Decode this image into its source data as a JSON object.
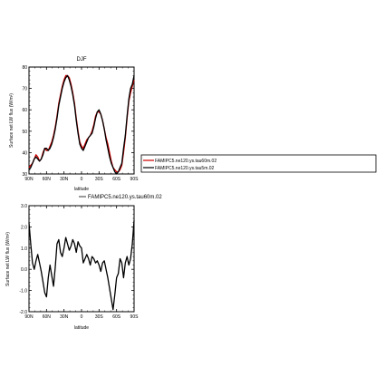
{
  "chart_data": [
    {
      "type": "line",
      "title": "DJF",
      "xlabel": "latitude",
      "ylabel": "Surface net LW flux (W/m²)",
      "xlim": [
        90,
        -90
      ],
      "ylim": [
        30,
        80
      ],
      "x_ticks": [
        90,
        60,
        30,
        0,
        -30,
        -60,
        -90
      ],
      "x_tick_labels": [
        "90N",
        "60N",
        "30N",
        "0",
        "30S",
        "60S",
        "90S"
      ],
      "y_ticks": [
        30,
        40,
        50,
        60,
        70,
        80
      ],
      "y_tick_labels": [
        "30",
        "40",
        "50",
        "60",
        "70",
        "80"
      ],
      "legend_position": "right",
      "series": [
        {
          "name": "FAMIPC5.ne120.ys.tau60m.02",
          "color": "#cc0000",
          "x": [
            90,
            87,
            84,
            81,
            78,
            75,
            72,
            69,
            66,
            63,
            60,
            57,
            54,
            51,
            48,
            45,
            42,
            39,
            36,
            33,
            30,
            27,
            24,
            21,
            18,
            15,
            12,
            9,
            6,
            3,
            0,
            -3,
            -6,
            -9,
            -12,
            -15,
            -18,
            -21,
            -24,
            -27,
            -30,
            -33,
            -36,
            -39,
            -42,
            -45,
            -48,
            -51,
            -54,
            -57,
            -60,
            -63,
            -66,
            -69,
            -72,
            -75,
            -78,
            -81,
            -84,
            -87,
            -90
          ],
          "values": [
            33,
            34,
            35,
            37,
            39,
            38,
            36,
            37,
            40,
            42,
            41,
            41,
            43,
            45,
            48,
            52,
            57,
            63,
            67,
            71,
            74,
            76,
            76,
            75,
            72,
            68,
            63,
            56,
            50,
            45,
            43,
            42,
            44,
            46,
            47,
            48,
            50,
            53,
            57,
            59,
            59,
            58,
            55,
            51,
            47,
            44,
            40,
            36,
            33,
            32,
            31,
            31,
            32,
            34,
            40,
            47,
            56,
            64,
            68,
            71,
            74
          ]
        },
        {
          "name": "FAMIPC5.ne120.ys.tau5m.02",
          "color": "#000000",
          "x": [
            90,
            87,
            84,
            81,
            78,
            75,
            72,
            69,
            66,
            63,
            60,
            57,
            54,
            51,
            48,
            45,
            42,
            39,
            36,
            33,
            30,
            27,
            24,
            21,
            18,
            15,
            12,
            9,
            6,
            3,
            0,
            -3,
            -6,
            -9,
            -12,
            -15,
            -18,
            -21,
            -24,
            -27,
            -30,
            -33,
            -36,
            -39,
            -42,
            -45,
            -48,
            -51,
            -54,
            -57,
            -60,
            -63,
            -66,
            -69,
            -72,
            -75,
            -78,
            -81,
            -84,
            -87,
            -90
          ],
          "values": [
            32,
            33,
            35,
            37,
            38,
            37,
            36,
            37,
            39,
            42,
            42,
            41,
            42,
            44,
            47,
            51,
            56,
            62,
            66,
            70,
            73,
            75,
            76,
            74,
            71,
            67,
            62,
            55,
            49,
            44,
            42,
            41,
            43,
            45,
            47,
            48,
            49,
            52,
            56,
            59,
            60,
            58,
            55,
            51,
            46,
            42,
            38,
            35,
            33,
            31,
            30,
            31,
            33,
            35,
            42,
            48,
            57,
            65,
            70,
            72,
            76
          ]
        }
      ]
    },
    {
      "type": "line",
      "title": "",
      "xlabel": "latitude",
      "ylabel": "Surface net LW flux (W/m²)",
      "xlim": [
        90,
        -90
      ],
      "ylim": [
        -2.0,
        3.0
      ],
      "x_ticks": [
        90,
        60,
        30,
        0,
        -30,
        -60,
        -90
      ],
      "x_tick_labels": [
        "90N",
        "60N",
        "30N",
        "0",
        "30S",
        "60S",
        "90S"
      ],
      "y_ticks": [
        -2.0,
        -1.0,
        0.0,
        1.0,
        2.0,
        3.0
      ],
      "y_tick_labels": [
        "-2.0",
        "-1.0",
        "0.0",
        "1.0",
        "2.0",
        "3.0"
      ],
      "legend_position": "top",
      "series": [
        {
          "name": "FAMIPC5.ne120.ys.tau60m.02",
          "color": "#000000",
          "x": [
            90,
            87,
            84,
            81,
            78,
            75,
            72,
            69,
            66,
            63,
            60,
            57,
            54,
            51,
            48,
            45,
            42,
            39,
            36,
            33,
            30,
            27,
            24,
            21,
            18,
            15,
            12,
            9,
            6,
            3,
            0,
            -3,
            -6,
            -9,
            -12,
            -15,
            -18,
            -21,
            -24,
            -27,
            -30,
            -33,
            -36,
            -39,
            -42,
            -45,
            -48,
            -51,
            -54,
            -57,
            -60,
            -63,
            -66,
            -69,
            -72,
            -75,
            -78,
            -81,
            -84,
            -87,
            -90
          ],
          "values": [
            2.2,
            1.2,
            0.3,
            0.0,
            0.4,
            0.7,
            0.3,
            -0.1,
            -0.6,
            -1.1,
            -1.3,
            -0.4,
            0.2,
            -0.3,
            -0.8,
            0.1,
            1.2,
            1.4,
            0.8,
            0.6,
            1.0,
            1.5,
            1.2,
            0.9,
            1.1,
            1.4,
            1.2,
            0.8,
            1.3,
            1.1,
            1.0,
            0.3,
            0.5,
            0.7,
            0.5,
            0.2,
            0.6,
            0.5,
            0.3,
            0.4,
            0.2,
            -0.1,
            0.3,
            0.4,
            0.0,
            -0.4,
            -0.9,
            -1.4,
            -1.9,
            -1.2,
            -0.4,
            -0.2,
            0.5,
            0.3,
            -0.4,
            0.3,
            0.6,
            0.2,
            0.5,
            1.2,
            2.3
          ]
        }
      ]
    }
  ]
}
